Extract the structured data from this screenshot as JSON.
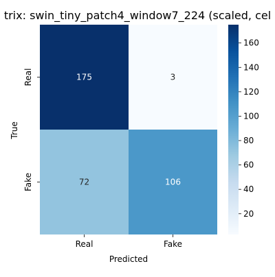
{
  "chart_data": {
    "type": "heatmap",
    "title": "trix: swin_tiny_patch4_window7_224 (scaled, cel",
    "xlabel": "Predicted",
    "ylabel": "True",
    "x_categories": [
      "Real",
      "Fake"
    ],
    "y_categories": [
      "Real",
      "Fake"
    ],
    "values": [
      [
        175,
        3
      ],
      [
        72,
        106
      ]
    ],
    "colorbar": {
      "min": 3,
      "max": 175,
      "ticks": [
        20,
        40,
        60,
        80,
        100,
        120,
        140,
        160
      ],
      "tick_labels": [
        "20",
        "40",
        "60",
        "80",
        "100",
        "120",
        "140",
        "160"
      ],
      "colormap": "Blues"
    },
    "grid": false,
    "legend": "colorbar-right"
  }
}
